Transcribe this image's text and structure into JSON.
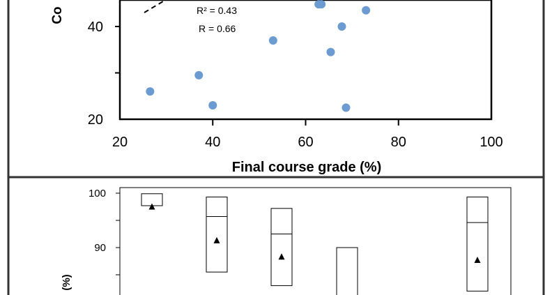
{
  "chart_data": [
    {
      "type": "scatter",
      "title": "",
      "xlabel": "Final course grade (%)",
      "ylabel_visible": "Co",
      "xlim": [
        20,
        100
      ],
      "x_ticks": [
        "20",
        "40",
        "60",
        "80",
        "100"
      ],
      "y_ticks_visible": [
        "20",
        "40"
      ],
      "annotations": [
        "R² = 0.43",
        "R = 0.66"
      ],
      "trendline": "dashed",
      "marker_color": "#6b9bd1",
      "points": [
        {
          "x": 26.5,
          "y": 26
        },
        {
          "x": 37,
          "y": 29.5
        },
        {
          "x": 40,
          "y": 23
        },
        {
          "x": 53,
          "y": 37
        },
        {
          "x": 62.8,
          "y": 44.8
        },
        {
          "x": 63.4,
          "y": 44.8
        },
        {
          "x": 65.4,
          "y": 34.5
        },
        {
          "x": 67.8,
          "y": 40
        },
        {
          "x": 68.7,
          "y": 22.5
        },
        {
          "x": 73,
          "y": 43.5
        }
      ]
    },
    {
      "type": "box",
      "ylabel_visible": "(%)",
      "y_ticks_visible": [
        "100",
        "90"
      ],
      "marker": "triangle",
      "boxes": [
        {
          "low": 97.7,
          "median": null,
          "high": 99.9,
          "mean": 97.5
        },
        {
          "low": 85.5,
          "median": 95.7,
          "high": 99.3,
          "mean": 91.3
        },
        {
          "low": 83,
          "median": 92.5,
          "high": 97.2,
          "mean": 88.3
        },
        {
          "low": null,
          "median": null,
          "high": 90,
          "mean": null
        },
        {
          "low": 82,
          "median": 94.6,
          "high": 99.3,
          "mean": 87.7
        }
      ]
    }
  ]
}
